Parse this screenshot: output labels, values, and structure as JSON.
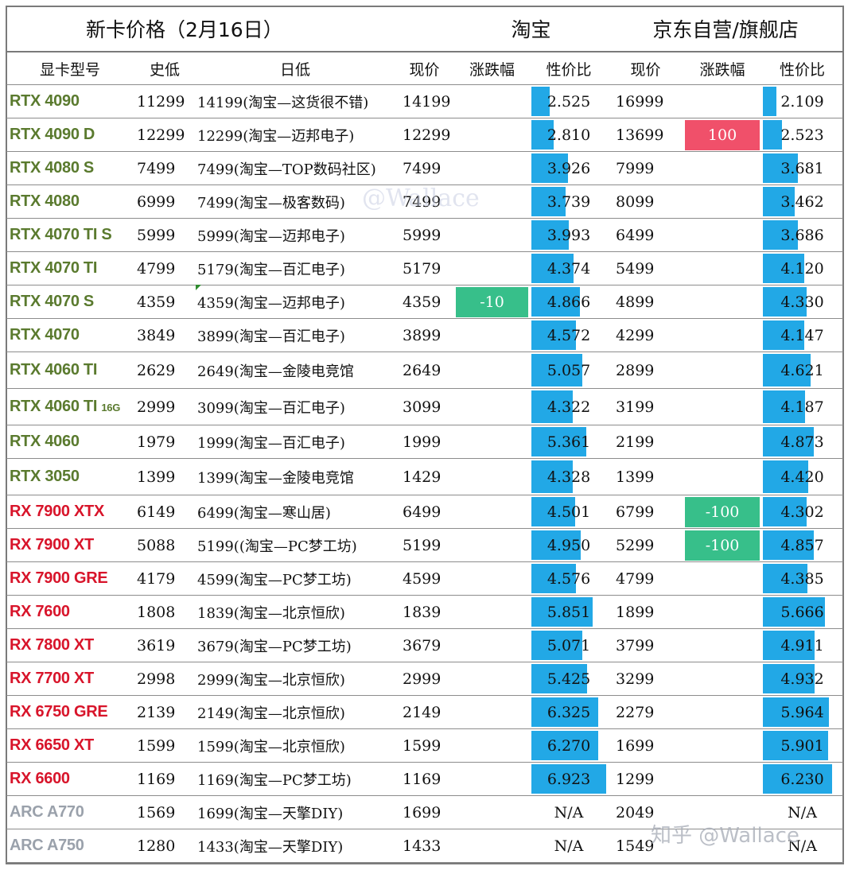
{
  "header": {
    "title": "新卡价格（2月16日）",
    "taobao": "淘宝",
    "jd": "京东自营/旗舰店"
  },
  "columns": {
    "model": "显卡型号",
    "hist_low": "史低",
    "day_low": "日低",
    "tb_price": "现价",
    "tb_change": "涨跌幅",
    "tb_ratio": "性价比",
    "jd_price": "现价",
    "jd_change": "涨跌幅",
    "jd_ratio": "性价比"
  },
  "rows": [
    {
      "model": "RTX 4090",
      "sub": "",
      "brand": "nv",
      "hist_low": "11299",
      "day_low": "14199(淘宝—这货很不错)",
      "tb_price": "14199",
      "tb_change": "",
      "tb_ratio": "2.525",
      "jd_price": "16999",
      "jd_change": "",
      "jd_ratio": "2.109"
    },
    {
      "model": "RTX 4090 D",
      "sub": "",
      "brand": "nv",
      "hist_low": "12299",
      "day_low": "12299(淘宝—迈邦电子)",
      "tb_price": "12299",
      "tb_change": "",
      "tb_ratio": "2.810",
      "jd_price": "13699",
      "jd_change": "100",
      "jd_ratio": "2.523"
    },
    {
      "model": "RTX 4080 S",
      "sub": "",
      "brand": "nv",
      "hist_low": "7499",
      "day_low": "7499(淘宝—TOP数码社区)",
      "tb_price": "7499",
      "tb_change": "",
      "tb_ratio": "3.926",
      "jd_price": "7999",
      "jd_change": "",
      "jd_ratio": "3.681"
    },
    {
      "model": "RTX 4080",
      "sub": "",
      "brand": "nv",
      "hist_low": "6999",
      "day_low": "7499(淘宝—极客数码)",
      "tb_price": "7499",
      "tb_change": "",
      "tb_ratio": "3.739",
      "jd_price": "8099",
      "jd_change": "",
      "jd_ratio": "3.462"
    },
    {
      "model": "RTX 4070 TI S",
      "sub": "",
      "brand": "nv",
      "hist_low": "5999",
      "day_low": "5999(淘宝—迈邦电子)",
      "tb_price": "5999",
      "tb_change": "",
      "tb_ratio": "3.993",
      "jd_price": "6499",
      "jd_change": "",
      "jd_ratio": "3.686"
    },
    {
      "model": "RTX 4070 TI",
      "sub": "",
      "brand": "nv",
      "hist_low": "4799",
      "day_low": "5179(淘宝—百汇电子)",
      "tb_price": "5179",
      "tb_change": "",
      "tb_ratio": "4.374",
      "jd_price": "5499",
      "jd_change": "",
      "jd_ratio": "4.120"
    },
    {
      "model": "RTX 4070 S",
      "sub": "",
      "brand": "nv",
      "hist_low": "4359",
      "day_low": "4359(淘宝—迈邦电子)",
      "tb_price": "4359",
      "tb_change": "-10",
      "tb_ratio": "4.866",
      "jd_price": "4899",
      "jd_change": "",
      "jd_ratio": "4.330"
    },
    {
      "model": "RTX 4070",
      "sub": "",
      "brand": "nv",
      "hist_low": "3849",
      "day_low": "3899(淘宝—百汇电子)",
      "tb_price": "3899",
      "tb_change": "",
      "tb_ratio": "4.572",
      "jd_price": "4299",
      "jd_change": "",
      "jd_ratio": "4.147"
    },
    {
      "model": "RTX 4060 TI",
      "sub": "",
      "brand": "nv",
      "hist_low": "2629",
      "day_low": "2649(淘宝—金陵电竞馆",
      "tb_price": "2649",
      "tb_change": "",
      "tb_ratio": "5.057",
      "jd_price": "2899",
      "jd_change": "",
      "jd_ratio": "4.621"
    },
    {
      "model": "RTX 4060 TI",
      "sub": "16G",
      "brand": "nv",
      "hist_low": "2999",
      "day_low": "3099(淘宝—百汇电子)",
      "tb_price": "3099",
      "tb_change": "",
      "tb_ratio": "4.322",
      "jd_price": "3199",
      "jd_change": "",
      "jd_ratio": "4.187"
    },
    {
      "model": "RTX 4060",
      "sub": "",
      "brand": "nv",
      "hist_low": "1979",
      "day_low": "1999(淘宝—百汇电子)",
      "tb_price": "1999",
      "tb_change": "",
      "tb_ratio": "5.361",
      "jd_price": "2199",
      "jd_change": "",
      "jd_ratio": "4.873"
    },
    {
      "model": "RTX 3050",
      "sub": "",
      "brand": "nv",
      "hist_low": "1399",
      "day_low": "1399(淘宝—金陵电竞馆",
      "tb_price": "1429",
      "tb_change": "",
      "tb_ratio": "4.328",
      "jd_price": "1399",
      "jd_change": "",
      "jd_ratio": "4.420"
    },
    {
      "model": "RX 7900 XTX",
      "sub": "",
      "brand": "amd",
      "hist_low": "6149",
      "day_low": "6499(淘宝—寒山居)",
      "tb_price": "6499",
      "tb_change": "",
      "tb_ratio": "4.501",
      "jd_price": "6799",
      "jd_change": "-100",
      "jd_ratio": "4.302"
    },
    {
      "model": "RX 7900 XT",
      "sub": "",
      "brand": "amd",
      "hist_low": "5088",
      "day_low": "5199((淘宝—PC梦工坊)",
      "tb_price": "5199",
      "tb_change": "",
      "tb_ratio": "4.950",
      "jd_price": "5299",
      "jd_change": "-100",
      "jd_ratio": "4.857"
    },
    {
      "model": "RX 7900 GRE",
      "sub": "",
      "brand": "amd",
      "hist_low": "4179",
      "day_low": "4599(淘宝—PC梦工坊)",
      "tb_price": "4599",
      "tb_change": "",
      "tb_ratio": "4.576",
      "jd_price": "4799",
      "jd_change": "",
      "jd_ratio": "4.385"
    },
    {
      "model": "RX 7600",
      "sub": "",
      "brand": "amd",
      "hist_low": "1808",
      "day_low": "1839(淘宝—北京恒欣)",
      "tb_price": "1839",
      "tb_change": "",
      "tb_ratio": "5.851",
      "jd_price": "1899",
      "jd_change": "",
      "jd_ratio": "5.666"
    },
    {
      "model": "RX 7800 XT",
      "sub": "",
      "brand": "amd",
      "hist_low": "3619",
      "day_low": "3679(淘宝—PC梦工坊)",
      "tb_price": "3679",
      "tb_change": "",
      "tb_ratio": "5.071",
      "jd_price": "3799",
      "jd_change": "",
      "jd_ratio": "4.911"
    },
    {
      "model": "RX 7700 XT",
      "sub": "",
      "brand": "amd",
      "hist_low": "2998",
      "day_low": "2999(淘宝—北京恒欣)",
      "tb_price": "2999",
      "tb_change": "",
      "tb_ratio": "5.425",
      "jd_price": "3299",
      "jd_change": "",
      "jd_ratio": "4.932"
    },
    {
      "model": "RX 6750 GRE",
      "sub": "",
      "brand": "amd",
      "hist_low": "2139",
      "day_low": "2149(淘宝—北京恒欣)",
      "tb_price": "2149",
      "tb_change": "",
      "tb_ratio": "6.325",
      "jd_price": "2279",
      "jd_change": "",
      "jd_ratio": "5.964"
    },
    {
      "model": "RX 6650 XT",
      "sub": "",
      "brand": "amd",
      "hist_low": "1599",
      "day_low": "1599(淘宝—北京恒欣)",
      "tb_price": "1599",
      "tb_change": "",
      "tb_ratio": "6.270",
      "jd_price": "1699",
      "jd_change": "",
      "jd_ratio": "5.901"
    },
    {
      "model": "RX 6600",
      "sub": "",
      "brand": "amd",
      "hist_low": "1169",
      "day_low": "1169(淘宝—PC梦工坊)",
      "tb_price": "1169",
      "tb_change": "",
      "tb_ratio": "6.923",
      "jd_price": "1299",
      "jd_change": "",
      "jd_ratio": "6.230"
    },
    {
      "model": "ARC A770",
      "sub": "",
      "brand": "intel",
      "hist_low": "1569",
      "day_low": "1699(淘宝—天擎DIY)",
      "tb_price": "1699",
      "tb_change": "",
      "tb_ratio": "N/A",
      "jd_price": "2049",
      "jd_change": "",
      "jd_ratio": "N/A"
    },
    {
      "model": "ARC A750",
      "sub": "",
      "brand": "intel",
      "hist_low": "1280",
      "day_low": "1433(淘宝—天擎DIY)",
      "tb_price": "1433",
      "tb_change": "",
      "tb_ratio": "N/A",
      "jd_price": "1549",
      "jd_change": "",
      "jd_ratio": "N/A"
    }
  ],
  "colors": {
    "nvidia": "#5a7a2e",
    "amd": "#d8142a",
    "intel": "#9aa1ab",
    "ratio_bar": "#22a8e6",
    "rise": "#f0506a",
    "fall": "#37bf8a"
  },
  "watermarks": {
    "center": "@Wallace",
    "corner": "知乎 @Wallace"
  }
}
